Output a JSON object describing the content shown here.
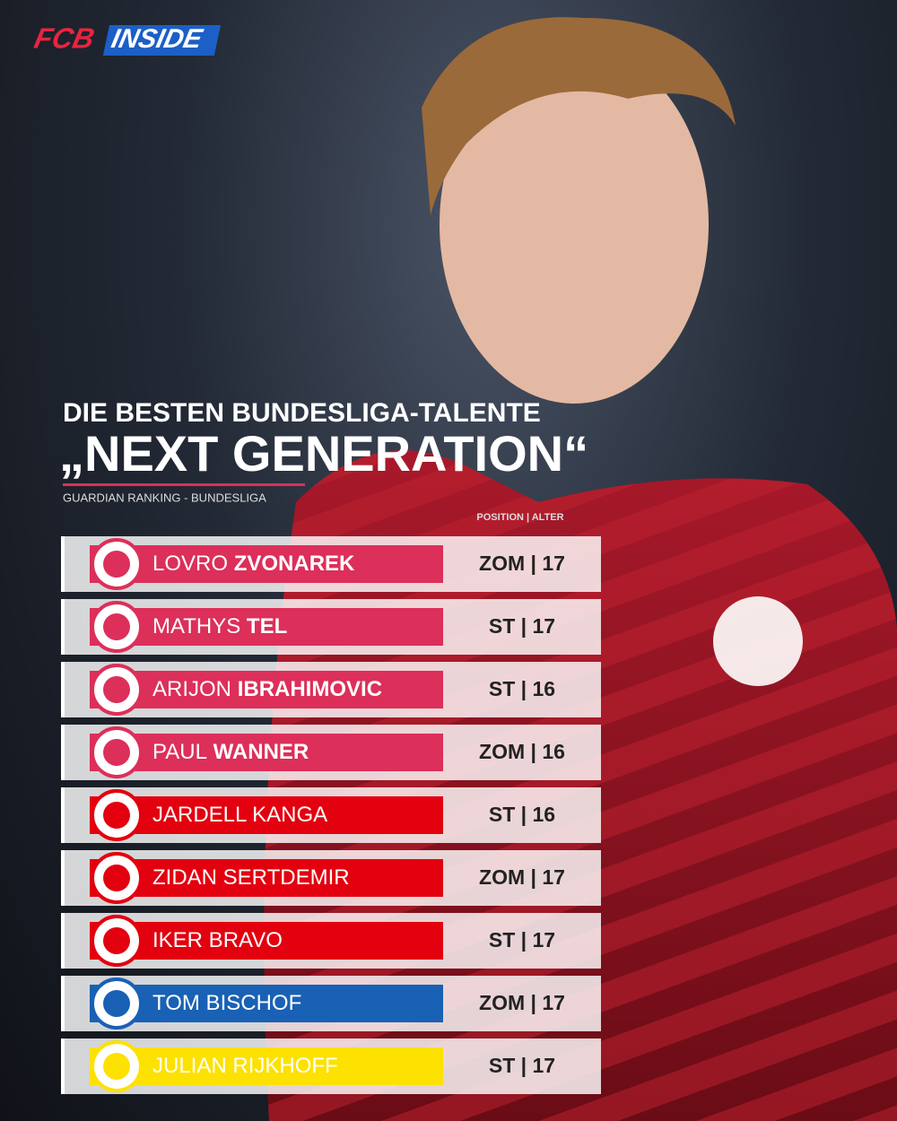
{
  "logo": {
    "part1": "FCB",
    "part2": "INSIDE"
  },
  "header": {
    "title": "DIE BESTEN BUNDESLIGA-TALENTE",
    "headline": "„NEXT GENERATION“",
    "subtitle": "GUARDIAN RANKING - BUNDESLIGA",
    "column": "POSITION | ALTER"
  },
  "rows": [
    {
      "name": "LOVRO",
      "name_bold": "ZVONAREK",
      "info": "ZOM | 17",
      "color": "#dc2f5a"
    },
    {
      "name": "MATHYS",
      "name_bold": "TEL",
      "info": "ST | 17",
      "color": "#dc2f5a"
    },
    {
      "name": "ARIJON",
      "name_bold": "IBRAHIMOVIC",
      "info": "ST | 16",
      "color": "#dc2f5a"
    },
    {
      "name": "PAUL",
      "name_bold": "WANNER",
      "info": "ZOM | 16",
      "color": "#dc2f5a"
    },
    {
      "name": "JARDELL KANGA",
      "info": "ST | 16",
      "color": "#e3000f"
    },
    {
      "name": "ZIDAN SERTDEMIR",
      "info": "ZOM | 17",
      "color": "#e3000f"
    },
    {
      "name": "IKER BRAVO",
      "info": "ST | 17",
      "color": "#e3000f"
    },
    {
      "name": "TOM BISCHOF",
      "info": "ZOM | 17",
      "color": "#1961b5"
    },
    {
      "name": "JULIAN RIJKHOFF",
      "info": "ST | 17",
      "color": "#fde100"
    }
  ]
}
